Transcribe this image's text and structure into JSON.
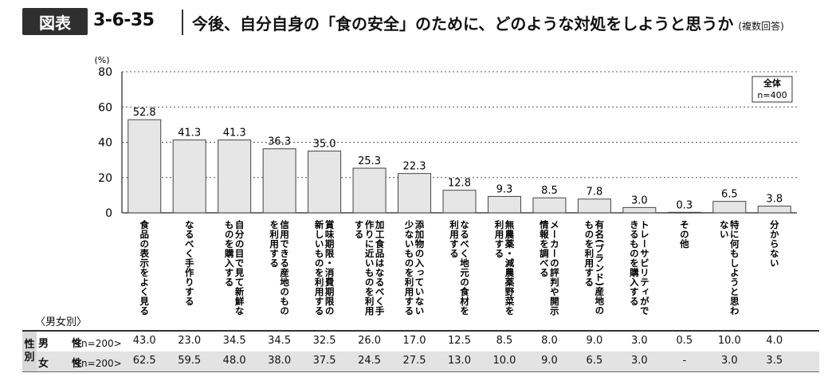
{
  "title": {
    "badge": "図表",
    "number": "3-6-35",
    "text": "今後、自分自身の「食の安全」のために、どのような対処をしようと思うか",
    "note": "(複数回答)"
  },
  "legend": {
    "line1": "全体",
    "line2": "n=400"
  },
  "chart_data": {
    "type": "bar",
    "unit_label": "(%)",
    "ylim": [
      0,
      80
    ],
    "yticks": [
      0,
      20,
      40,
      60,
      80
    ],
    "grid": true,
    "categories": [
      "食品の表示をよく見る",
      "なるべく手作りする",
      "自分の目で見て新鮮なものを購入する",
      "信用できる産地のものを利用する",
      "賞味期限・消費期限の新しいものを利用する",
      "加工食品はなるべく手作りに近いものを利用する",
      "添加物の入っていない・少ないものを利用する",
      "なるべく地元の食材を利用する",
      "無農薬・減農薬野菜を利用する",
      "メーカーの評判や開示情報を調べる",
      "有名(ブランド)産地のものを利用する",
      "トレーサビリティができるものを購入する",
      "その他",
      "特に何もしようと思わない",
      "分からない"
    ],
    "category_lines": [
      [
        "食品の表示をよく見る"
      ],
      [
        "なるべく手作りする"
      ],
      [
        "自分の目で見て新鮮な",
        "ものを購入する"
      ],
      [
        "信用できる産地のもの",
        "を利用する"
      ],
      [
        "賞味期限・消費期限の",
        "新しいものを利用する"
      ],
      [
        "加工食品はなるべく手",
        "作りに近いものを利用",
        "する"
      ],
      [
        "添加物の入っていない・",
        "少ないものを利用する"
      ],
      [
        "なるべく地元の食材を",
        "利用する"
      ],
      [
        "無農薬・減農薬野菜を",
        "利用する"
      ],
      [
        "メーカーの評判や開示",
        "情報を調べる"
      ],
      [
        "有名(ブランド)産地の",
        "ものを利用する"
      ],
      [
        "トレーサビリティがで",
        "きるものを購入する"
      ],
      [
        "その他"
      ],
      [
        "特に何もしようと思わ",
        "ない"
      ],
      [
        "分からない"
      ]
    ],
    "series": [
      {
        "name": "全体",
        "values": [
          52.8,
          41.3,
          41.3,
          36.3,
          35.0,
          25.3,
          22.3,
          12.8,
          9.3,
          8.5,
          7.8,
          3.0,
          0.3,
          6.5,
          3.8
        ]
      }
    ],
    "value_labels": [
      "52.8",
      "41.3",
      "41.3",
      "36.3",
      "35.0",
      "25.3",
      "22.3",
      "12.8",
      "9.3",
      "8.5",
      "7.8",
      "3.0",
      "0.3",
      "6.5",
      "3.8"
    ],
    "bar_color": "#e6e6e6",
    "bar_stroke": "#444444"
  },
  "breakdown": {
    "group_label": "〈男女別〉",
    "side_label_top": "性",
    "side_label_bottom": "別",
    "rows": [
      {
        "sex": "男　性",
        "n": "<n=200>",
        "values": [
          "43.0",
          "23.0",
          "34.5",
          "34.5",
          "32.5",
          "26.0",
          "17.0",
          "12.5",
          "8.5",
          "8.0",
          "9.0",
          "3.0",
          "0.5",
          "10.0",
          "4.0"
        ]
      },
      {
        "sex": "女　性",
        "n": "<n=200>",
        "values": [
          "62.5",
          "59.5",
          "48.0",
          "38.0",
          "37.5",
          "24.5",
          "27.5",
          "13.0",
          "10.0",
          "9.0",
          "6.5",
          "3.0",
          "-",
          "3.0",
          "3.5"
        ]
      }
    ]
  }
}
